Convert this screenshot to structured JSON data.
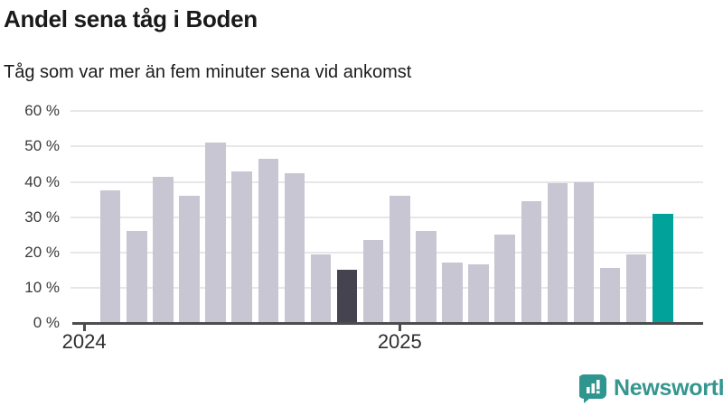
{
  "header": {
    "title": "Andel sena tåg i Boden",
    "subtitle": "Tåg som var mer än fem minuter sena vid ankomst"
  },
  "footer": {
    "brand": "Newsworthy"
  },
  "colors": {
    "bar_default": "#c8c6d2",
    "bar_dark": "#454350",
    "bar_teal": "#00a29a",
    "grid": "#e7e7e9",
    "axis": "#4d4d4d",
    "title_text": "#1a1a1a",
    "tick_text": "#3a3a3a",
    "brand_teal": "#35968f"
  },
  "chart_data": {
    "type": "bar",
    "title": "Andel sena tåg i Boden",
    "subtitle": "Tåg som var mer än fem minuter sena vid ankomst",
    "unit": "%",
    "x": [
      "2024-02",
      "2024-03",
      "2024-04",
      "2024-05",
      "2024-06",
      "2024-07",
      "2024-08",
      "2024-09",
      "2024-10",
      "2024-11",
      "2024-12",
      "2025-01",
      "2025-02",
      "2025-03",
      "2025-04",
      "2025-05",
      "2025-06",
      "2025-07",
      "2025-08",
      "2025-09",
      "2025-10",
      "2025-11"
    ],
    "values": [
      37.5,
      26,
      41.5,
      36,
      51,
      43,
      46.5,
      42.5,
      19.5,
      15,
      23.5,
      36,
      26,
      17,
      16.5,
      25,
      34.5,
      39.5,
      40,
      15.5,
      19.5,
      31
    ],
    "bar_colors": {
      "9": "dark",
      "21": "teal"
    },
    "highlights": {
      "dark": "2024-11",
      "teal": "2025-11"
    },
    "ylim": [
      0,
      60
    ],
    "y_ticks": [
      "60 %",
      "50 %",
      "40 %",
      "30 %",
      "20 %",
      "10 %",
      "0 %"
    ],
    "x_ticks": [
      {
        "label": "2024",
        "month_index": -1
      },
      {
        "label": "2025",
        "month_index": 11
      }
    ],
    "grid": "horizontal",
    "legend": "none"
  }
}
